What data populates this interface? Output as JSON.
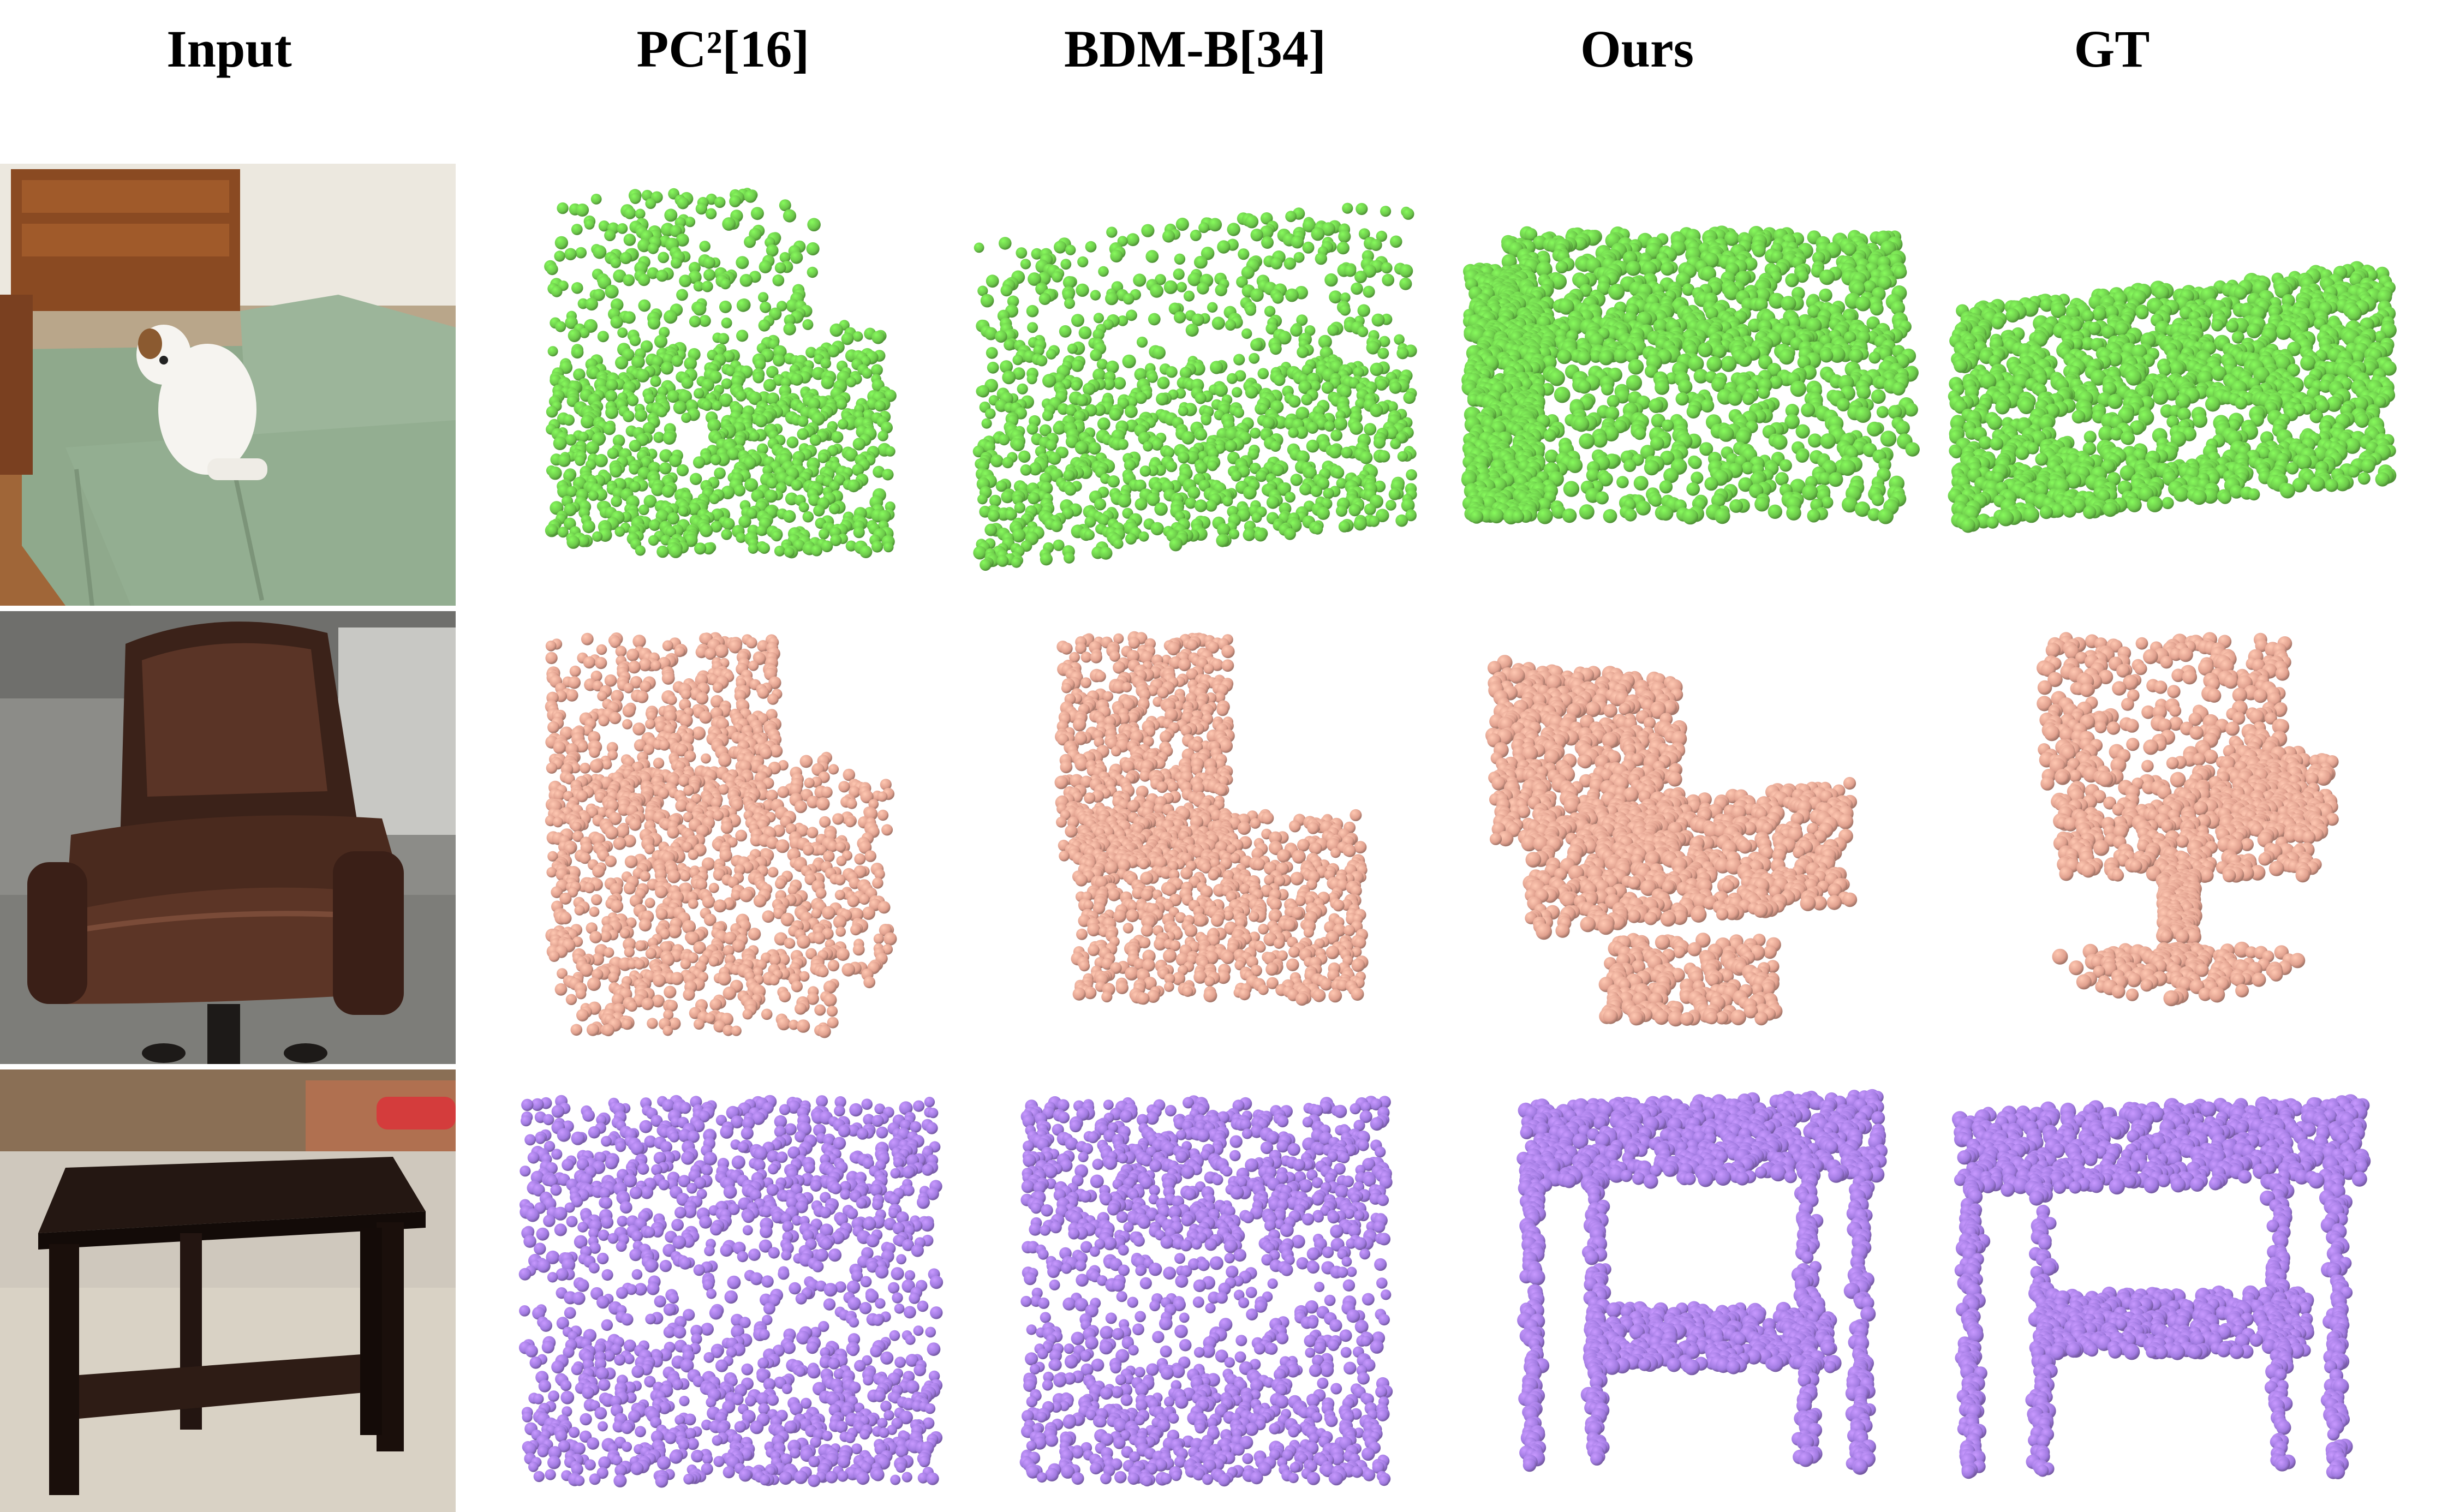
{
  "columns": [
    "Input",
    "PC²[16]",
    "BDM-B[34]",
    "Ours",
    "GT"
  ],
  "rows": [
    {
      "object": "sofa",
      "color": "#6cc84a",
      "methods": [
        "PC²[16]",
        "BDM-B[34]",
        "Ours",
        "GT"
      ]
    },
    {
      "object": "chair",
      "color": "#e0a08e",
      "methods": [
        "PC²[16]",
        "BDM-B[34]",
        "Ours",
        "GT"
      ]
    },
    {
      "object": "table",
      "color": "#a07ae0",
      "methods": [
        "PC²[16]",
        "BDM-B[34]",
        "Ours",
        "GT"
      ]
    }
  ],
  "icons": {
    "sofa_photo": "sofa-with-dog-photo",
    "chair_photo": "leather-office-chair-photo",
    "table_photo": "dark-wood-end-table-photo"
  }
}
